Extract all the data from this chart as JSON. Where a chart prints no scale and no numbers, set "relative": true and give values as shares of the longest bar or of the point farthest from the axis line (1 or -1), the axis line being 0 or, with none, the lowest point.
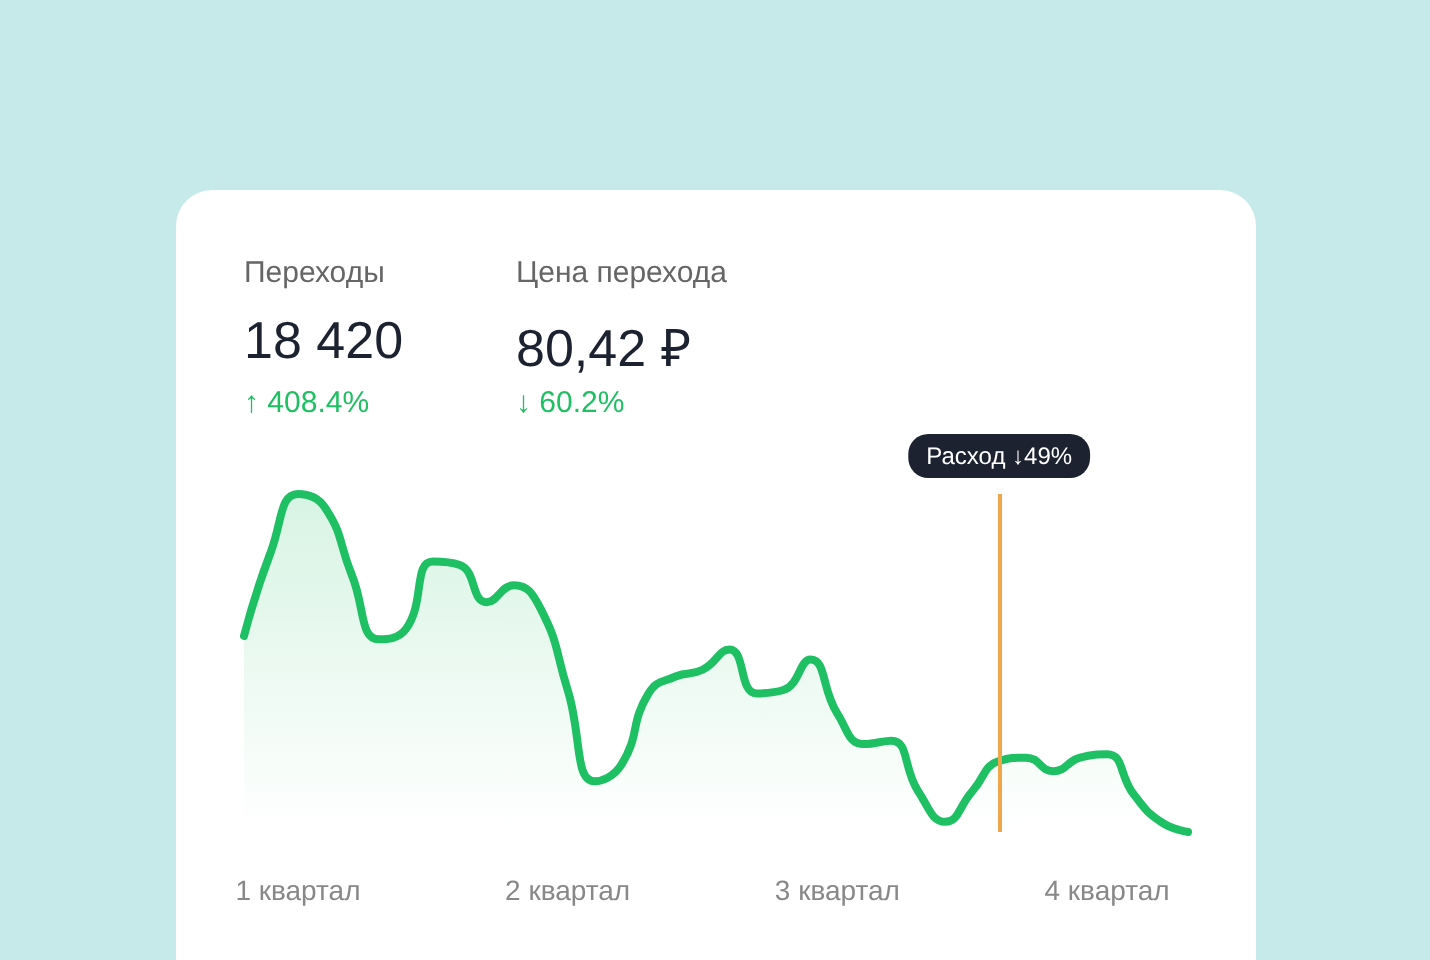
{
  "chart_data": {
    "type": "area",
    "relative": true,
    "annotations": [
      "Переходы",
      "18 420",
      "↑ 408.4%",
      "Цена перехода",
      "80,42 ₽",
      "↓ 60.2%",
      "Расход ↓49%"
    ],
    "categories": [
      null,
      null,
      "1 квартал",
      null,
      null,
      null,
      null,
      null,
      null,
      null,
      null,
      null,
      "2 квартал",
      null,
      null,
      null,
      null,
      null,
      null,
      null,
      null,
      null,
      "3 квартал",
      null,
      null,
      null,
      null,
      null,
      null,
      null,
      null,
      null,
      "4 квартал",
      null,
      null,
      null
    ],
    "series": [
      {
        "color": "#1fbf64",
        "values": [
          0.58,
          0.83,
          1,
          0.96,
          0.76,
          0.57,
          0.6,
          0.8,
          0.79,
          0.68,
          0.73,
          0.66,
          0.42,
          0.15,
          0.2,
          0.41,
          0.46,
          0.48,
          0.54,
          0.41,
          0.42,
          0.51,
          0.35,
          0.26,
          0.27,
          0.12,
          0.03,
          0.12,
          0.21,
          0.22,
          0.18,
          0.22,
          0.23,
          0.11,
          0.03,
          0
        ]
      }
    ]
  }
}
